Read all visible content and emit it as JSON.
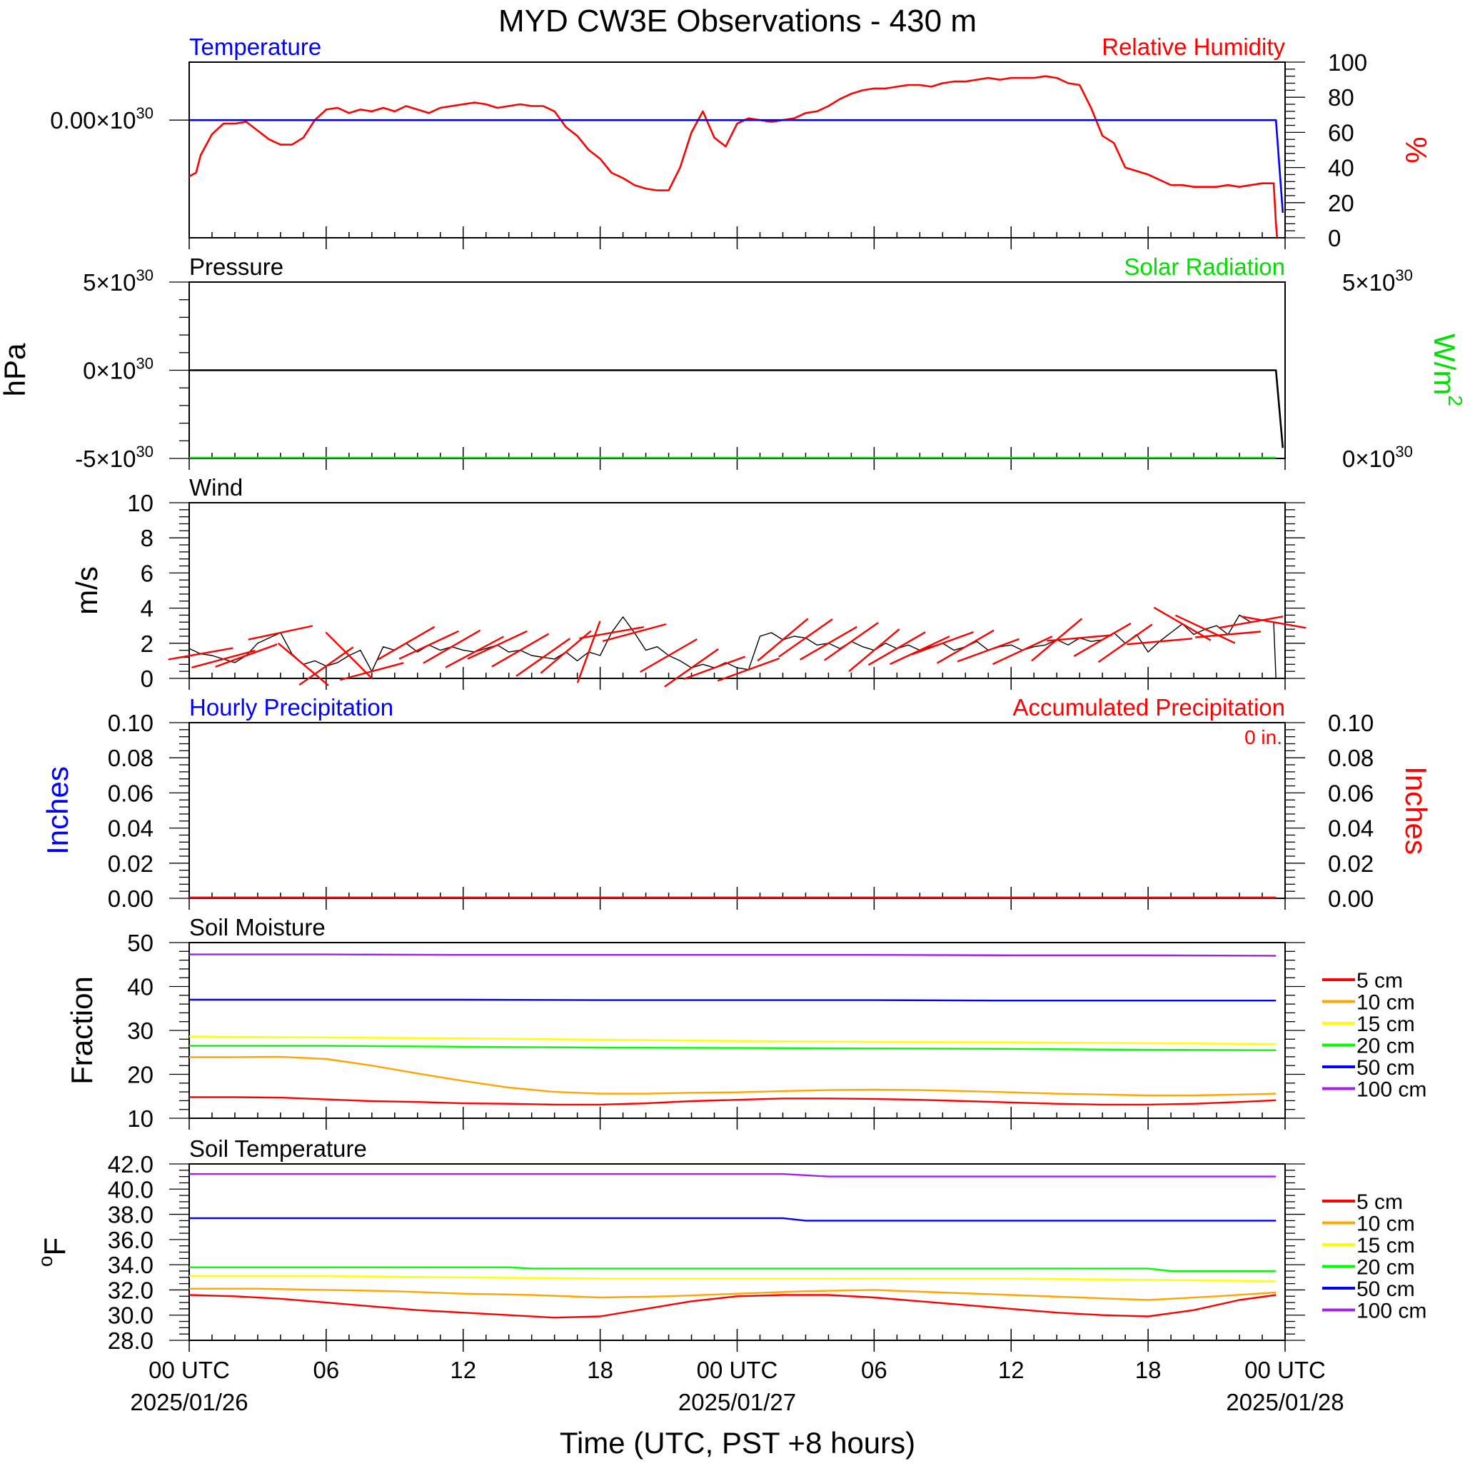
{
  "title": "MYD CW3E Observations - 430 m",
  "x_axis": {
    "label": "Time (UTC, PST +8 hours)",
    "range_hours": [
      0,
      48
    ],
    "ticks": [
      {
        "h": 0,
        "label": "00 UTC",
        "date": "2025/01/26"
      },
      {
        "h": 6,
        "label": "06",
        "date": ""
      },
      {
        "h": 12,
        "label": "12",
        "date": ""
      },
      {
        "h": 18,
        "label": "18",
        "date": ""
      },
      {
        "h": 24,
        "label": "00 UTC",
        "date": "2025/01/27"
      },
      {
        "h": 30,
        "label": "06",
        "date": ""
      },
      {
        "h": 36,
        "label": "12",
        "date": ""
      },
      {
        "h": 42,
        "label": "18",
        "date": ""
      },
      {
        "h": 48,
        "label": "00 UTC",
        "date": "2025/01/28"
      }
    ]
  },
  "colors": {
    "temperature": "#0000ff",
    "relative_humidity": "#ff0000",
    "pressure": "#000000",
    "solar": "#00e000",
    "wind": "#000000",
    "barbs": "#ff0000",
    "hourly_precip": "#0000ff",
    "accum_precip": "#ff0000",
    "layers": [
      "#ff0000",
      "#ffa500",
      "#ffff00",
      "#00ff00",
      "#0000ff",
      "#a020f0"
    ]
  },
  "chart_data": [
    {
      "id": "temp_rh",
      "type": "line",
      "left_title": "Temperature",
      "right_title": "Relative Humidity",
      "left_tick_label": "0.00",
      "left_tick_exp": "30",
      "right_axis_label": "%",
      "right_ticks": [
        "0",
        "20",
        "40",
        "60",
        "80",
        "100"
      ],
      "ylim_right": [
        0,
        100
      ],
      "temperature": {
        "x_hours": [
          0,
          47.6,
          47.9
        ],
        "values": [
          0,
          0,
          -5.2e+30
        ]
      },
      "relative_humidity": {
        "x_hours": [
          0,
          0.3,
          0.5,
          1,
          1.5,
          2,
          2.5,
          3,
          3.5,
          4,
          4.5,
          5,
          5.5,
          6,
          6.5,
          7,
          7.5,
          8,
          8.5,
          9,
          9.5,
          10,
          10.5,
          11,
          11.5,
          12,
          12.5,
          13,
          13.5,
          14,
          14.5,
          15,
          15.5,
          16,
          16.5,
          17,
          17.5,
          18,
          18.5,
          19,
          19.5,
          20,
          20.5,
          21,
          21.5,
          22,
          22.5,
          23,
          23.5,
          24,
          24.5,
          25,
          25.5,
          26,
          26.5,
          27,
          27.5,
          28,
          28.5,
          29,
          29.5,
          30,
          30.5,
          31,
          31.5,
          32,
          32.5,
          33,
          33.5,
          34,
          34.5,
          35,
          35.5,
          36,
          36.5,
          37,
          37.5,
          38,
          38.5,
          39,
          39.5,
          40,
          40.5,
          41,
          41.5,
          42,
          42.5,
          43,
          43.5,
          44,
          44.5,
          45,
          45.5,
          46,
          46.5,
          47,
          47.5,
          47.6,
          47.65
        ],
        "values": [
          35,
          37,
          47,
          59,
          65,
          65,
          66,
          61,
          56,
          53,
          53,
          57,
          67,
          73,
          74,
          71,
          73,
          72,
          74,
          72,
          75,
          73,
          71,
          74,
          75,
          76,
          77,
          76,
          74,
          75,
          76,
          75,
          75,
          72,
          63,
          58,
          50,
          45,
          37,
          34,
          30,
          28,
          27,
          27,
          40,
          60,
          72,
          57,
          52,
          65,
          68,
          67,
          66,
          67,
          68,
          71,
          72,
          75,
          79,
          82,
          84,
          85,
          85,
          86,
          87,
          87,
          86,
          88,
          89,
          89,
          90,
          91,
          90,
          91,
          91,
          91,
          92,
          91,
          88,
          87,
          74,
          58,
          54,
          40,
          38,
          36,
          33,
          30,
          30,
          29,
          29,
          29,
          30,
          29,
          30,
          31,
          31,
          8,
          0
        ]
      }
    },
    {
      "id": "pressure_solar",
      "type": "line",
      "left_title": "Pressure",
      "right_title": "Solar Radiation",
      "left_axis_label": "hPa",
      "right_axis_label": "W/m",
      "right_axis_sup": "2",
      "left_ticks": [
        {
          "v": 5e+30,
          "m": "5"
        },
        {
          "v": 0,
          "m": "0"
        },
        {
          "v": -5e+30,
          "m": "-5"
        }
      ],
      "right_ticks": [
        {
          "m": "5"
        },
        {
          "m": "0"
        }
      ],
      "tick_exp": "30",
      "ylim": [
        -5e+30,
        5e+30
      ],
      "pressure": {
        "x_hours": [
          0,
          47.6,
          47.9
        ],
        "values": [
          0,
          0,
          -4.4e+30
        ]
      },
      "solar": {
        "x_hours": [
          0,
          47.6
        ],
        "values": [
          0,
          0
        ]
      }
    },
    {
      "id": "wind",
      "type": "line",
      "left_title": "Wind",
      "left_axis_label": "m/s",
      "ticks": [
        "0",
        "2",
        "4",
        "6",
        "8",
        "10"
      ],
      "ylim": [
        0,
        10
      ],
      "speed": {
        "x_hours": [
          0,
          0.5,
          1,
          1.5,
          2,
          2.5,
          3,
          3.5,
          4,
          4.5,
          5,
          5.5,
          6,
          6.5,
          7,
          7.5,
          8,
          8.5,
          9,
          9.5,
          10,
          10.5,
          11,
          11.5,
          12,
          12.5,
          13,
          13.5,
          14,
          14.5,
          15,
          15.5,
          16,
          16.5,
          17,
          17.5,
          18,
          18.5,
          19,
          19.5,
          20,
          20.5,
          21,
          21.5,
          22,
          22.5,
          23,
          23.5,
          24,
          24.5,
          25,
          25.5,
          26,
          26.5,
          27,
          27.5,
          28,
          28.5,
          29,
          29.5,
          30,
          30.5,
          31,
          31.5,
          32,
          32.5,
          33,
          33.5,
          34,
          34.5,
          35,
          35.5,
          36,
          36.5,
          37,
          37.5,
          38,
          38.5,
          39,
          39.5,
          40,
          40.5,
          41,
          41.5,
          42,
          42.5,
          43,
          43.5,
          44,
          44.5,
          45,
          45.5,
          46,
          46.5,
          47,
          47.5,
          47.6
        ],
        "values": [
          1.7,
          1.4,
          1.3,
          1.1,
          0.9,
          1.3,
          2.0,
          2.3,
          2.6,
          1.4,
          0.8,
          1.0,
          0.7,
          0.9,
          1.3,
          1.6,
          0.4,
          1.8,
          1.6,
          2.0,
          1.5,
          1.9,
          1.6,
          1.8,
          1.6,
          1.5,
          1.7,
          1.9,
          1.5,
          1.6,
          1.3,
          1.2,
          1.1,
          1.5,
          1.0,
          1.5,
          1.3,
          2.6,
          3.5,
          2.6,
          1.6,
          1.8,
          1.3,
          1.0,
          0.6,
          0.8,
          0.6,
          0.9,
          0.6,
          0.5,
          2.4,
          2.6,
          2.2,
          2.4,
          2.3,
          1.9,
          2.0,
          1.7,
          2.1,
          1.8,
          1.6,
          2.0,
          1.7,
          1.9,
          1.6,
          1.8,
          2.0,
          1.6,
          1.8,
          2.1,
          1.6,
          1.8,
          1.9,
          1.6,
          1.8,
          1.9,
          2.2,
          1.9,
          2.3,
          2.1,
          2.2,
          2.6,
          2.0,
          2.5,
          1.5,
          2.1,
          2.6,
          3.1,
          2.5,
          2.8,
          3.0,
          2.5,
          3.6,
          3.2,
          3.3,
          3.2,
          0
        ]
      },
      "barbs": {
        "x_hours": [
          0.5,
          1.5,
          2.5,
          4,
          5,
          6,
          7,
          8,
          9.5,
          10.5,
          11.5,
          12.5,
          13.5,
          14.5,
          15.5,
          16.5,
          17.5,
          18.5,
          19.5,
          21,
          22,
          23,
          24.5,
          26,
          27,
          28,
          29,
          30,
          31,
          32,
          33,
          34,
          35,
          36.5,
          38,
          39,
          40,
          41,
          42.5,
          43.5,
          44.5,
          45.5,
          46.5,
          47.5
        ],
        "angles_deg": [
          -10,
          -15,
          -20,
          -12,
          40,
          -35,
          45,
          -15,
          -30,
          -25,
          -30,
          -28,
          -25,
          -30,
          -35,
          -40,
          -70,
          -10,
          -15,
          -30,
          -35,
          -20,
          -20,
          -40,
          -35,
          -30,
          -35,
          -40,
          -30,
          -25,
          -20,
          -30,
          -20,
          -25,
          -40,
          -5,
          -30,
          -35,
          -5,
          30,
          25,
          -5,
          -10,
          10
        ]
      }
    },
    {
      "id": "precip",
      "type": "line",
      "left_title": "Hourly Precipitation",
      "right_title": "Accumulated Precipitation",
      "total_label": "0 in.",
      "left_axis_label": "Inches",
      "right_axis_label": "Inches",
      "ticks": [
        "0.00",
        "0.02",
        "0.04",
        "0.06",
        "0.08",
        "0.10"
      ],
      "ylim": [
        0,
        0.1
      ],
      "hourly": {
        "x_hours": [
          0,
          47.6
        ],
        "values": [
          0,
          0
        ]
      },
      "accumulated": {
        "x_hours": [
          0,
          47.6
        ],
        "values": [
          0,
          0
        ]
      }
    },
    {
      "id": "soil_moisture",
      "type": "line",
      "left_title": "Soil Moisture",
      "left_axis_label": "Fraction",
      "ticks": [
        "10",
        "20",
        "30",
        "40",
        "50"
      ],
      "ylim": [
        10,
        50
      ],
      "legend": [
        "5 cm",
        "10 cm",
        "15 cm",
        "20 cm",
        "50 cm",
        "100 cm"
      ],
      "series": [
        {
          "name": "5 cm",
          "x_hours": [
            0,
            2,
            4,
            6,
            8,
            10,
            12,
            14,
            16,
            18,
            20,
            22,
            24,
            26,
            28,
            30,
            32,
            34,
            36,
            38,
            40,
            42,
            44,
            46,
            47.6
          ],
          "values": [
            14.8,
            14.8,
            14.7,
            14.3,
            13.9,
            13.7,
            13.4,
            13.3,
            13.1,
            13.1,
            13.4,
            13.9,
            14.2,
            14.5,
            14.5,
            14.4,
            14.2,
            13.9,
            13.6,
            13.3,
            13.1,
            13.1,
            13.3,
            13.7,
            14.1
          ]
        },
        {
          "name": "10 cm",
          "x_hours": [
            0,
            2,
            4,
            6,
            8,
            10,
            12,
            14,
            16,
            18,
            20,
            22,
            24,
            26,
            28,
            30,
            32,
            34,
            36,
            38,
            40,
            42,
            44,
            46,
            47.6
          ],
          "values": [
            23.9,
            23.9,
            24.0,
            23.5,
            22.0,
            20.2,
            18.5,
            17.0,
            16.0,
            15.6,
            15.6,
            15.8,
            15.9,
            16.2,
            16.4,
            16.5,
            16.4,
            16.2,
            15.9,
            15.6,
            15.4,
            15.2,
            15.2,
            15.4,
            15.6
          ]
        },
        {
          "name": "15 cm",
          "x_hours": [
            0,
            6,
            12,
            18,
            24,
            30,
            36,
            42,
            47.6
          ],
          "values": [
            28.6,
            28.4,
            28.2,
            27.9,
            27.6,
            27.4,
            27.3,
            27.1,
            26.9
          ]
        },
        {
          "name": "20 cm",
          "x_hours": [
            0,
            6,
            12,
            18,
            24,
            30,
            36,
            42,
            47.6
          ],
          "values": [
            26.5,
            26.5,
            26.3,
            26.1,
            26.0,
            25.9,
            25.8,
            25.6,
            25.5
          ]
        },
        {
          "name": "50 cm",
          "x_hours": [
            0,
            6,
            12,
            18,
            24,
            30,
            36,
            42,
            47.6
          ],
          "values": [
            37.0,
            37.0,
            37.0,
            36.9,
            36.9,
            36.9,
            36.8,
            36.8,
            36.8
          ]
        },
        {
          "name": "100 cm",
          "x_hours": [
            0,
            6,
            12,
            18,
            24,
            30,
            36,
            42,
            47.6
          ],
          "values": [
            47.3,
            47.3,
            47.2,
            47.2,
            47.2,
            47.2,
            47.1,
            47.1,
            47.0
          ]
        }
      ]
    },
    {
      "id": "soil_temperature",
      "type": "line",
      "left_title": "Soil Temperature",
      "left_axis_label": "F",
      "left_axis_label_sup": "o",
      "ticks": [
        "28.0",
        "30.0",
        "32.0",
        "34.0",
        "36.0",
        "38.0",
        "40.0",
        "42.0"
      ],
      "ylim": [
        28,
        42
      ],
      "legend": [
        "5 cm",
        "10 cm",
        "15 cm",
        "20 cm",
        "50 cm",
        "100 cm"
      ],
      "series": [
        {
          "name": "5 cm",
          "x_hours": [
            0,
            2,
            4,
            6,
            8,
            10,
            12,
            14,
            16,
            18,
            20,
            22,
            24,
            26,
            28,
            30,
            32,
            34,
            36,
            38,
            40,
            42,
            44,
            46,
            47.6
          ],
          "values": [
            31.6,
            31.5,
            31.3,
            31.0,
            30.7,
            30.4,
            30.2,
            30.0,
            29.8,
            29.9,
            30.5,
            31.1,
            31.5,
            31.6,
            31.6,
            31.4,
            31.1,
            30.8,
            30.5,
            30.2,
            30.0,
            29.9,
            30.4,
            31.2,
            31.6
          ]
        },
        {
          "name": "10 cm",
          "x_hours": [
            0,
            3,
            6,
            9,
            12,
            15,
            18,
            21,
            24,
            27,
            30,
            33,
            36,
            39,
            42,
            45,
            47.6
          ],
          "values": [
            32.1,
            32.1,
            32.0,
            31.9,
            31.7,
            31.6,
            31.4,
            31.5,
            31.7,
            31.9,
            32.0,
            31.8,
            31.6,
            31.4,
            31.2,
            31.5,
            31.8
          ]
        },
        {
          "name": "15 cm",
          "x_hours": [
            0,
            6,
            12,
            18,
            24,
            30,
            36,
            42,
            47.6
          ],
          "values": [
            33.1,
            33.1,
            33.0,
            32.9,
            32.9,
            32.9,
            32.9,
            32.8,
            32.7
          ]
        },
        {
          "name": "20 cm",
          "x_hours": [
            0,
            6,
            12,
            14,
            15,
            18,
            24,
            30,
            36,
            42,
            43,
            47.6
          ],
          "values": [
            33.8,
            33.8,
            33.8,
            33.8,
            33.7,
            33.7,
            33.7,
            33.7,
            33.7,
            33.7,
            33.5,
            33.5
          ]
        },
        {
          "name": "50 cm",
          "x_hours": [
            0,
            6,
            12,
            18,
            24,
            26,
            27,
            30,
            36,
            42,
            47.6
          ],
          "values": [
            37.7,
            37.7,
            37.7,
            37.7,
            37.7,
            37.7,
            37.5,
            37.5,
            37.5,
            37.5,
            37.5
          ]
        },
        {
          "name": "100 cm",
          "x_hours": [
            0,
            6,
            12,
            18,
            24,
            26,
            28,
            30,
            36,
            42,
            47.6
          ],
          "values": [
            41.2,
            41.2,
            41.2,
            41.2,
            41.2,
            41.2,
            41.0,
            41.0,
            41.0,
            41.0,
            41.0
          ]
        }
      ]
    }
  ]
}
